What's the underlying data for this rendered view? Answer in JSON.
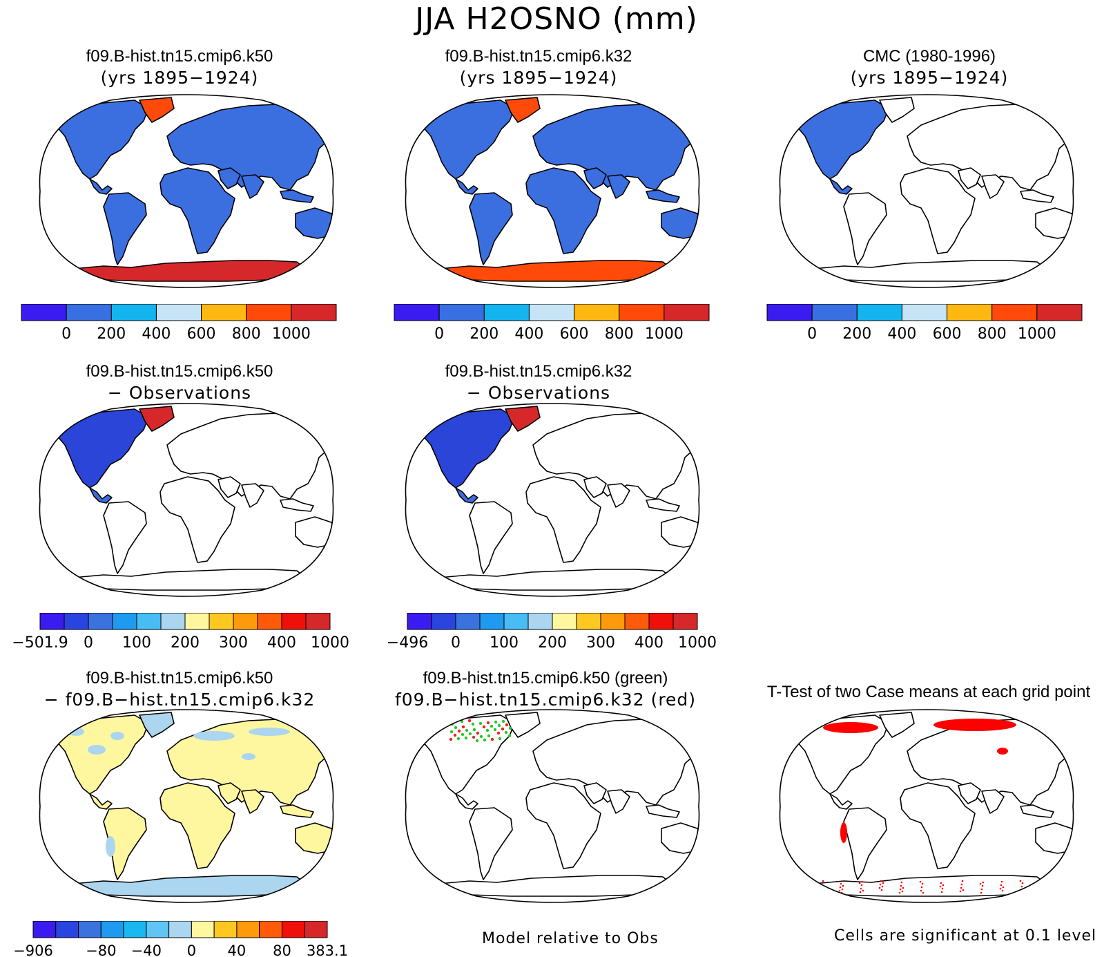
{
  "figure": {
    "title": "JJA H2OSNO (mm)"
  },
  "land_color_map": {
    "model": "#3b6fe0",
    "diff": "#2a45d8",
    "ttest": "#ff0000"
  },
  "panels": [
    {
      "id": "p1",
      "title_line1": "f09.B-hist.tn15.cmip6.k50",
      "title_line2": "(yrs 1895−1924)",
      "fill": "model"
    },
    {
      "id": "p2",
      "title_line1": "f09.B-hist.tn15.cmip6.k32",
      "title_line2": "(yrs 1895−1924)",
      "fill": "model"
    },
    {
      "id": "p3",
      "title_line1": "CMC (1980-1996)",
      "title_line2": "(yrs 1895−1924)",
      "fill": "obs"
    },
    {
      "id": "p4",
      "title_line1": "f09.B-hist.tn15.cmip6.k50",
      "title_line2": "− Observations",
      "fill": "diff"
    },
    {
      "id": "p5",
      "title_line1": "f09.B-hist.tn15.cmip6.k32",
      "title_line2": "− Observations",
      "fill": "diff"
    },
    {
      "id": "p6",
      "title_line1": "f09.B-hist.tn15.cmip6.k50",
      "title_line2": "− f09.B−hist.tn15.cmip6.k32",
      "fill": "casediff"
    },
    {
      "id": "p7",
      "title_line1": "f09.B-hist.tn15.cmip6.k50 (green)",
      "title_line2": "f09.B−hist.tn15.cmip6.k32 (red)",
      "fill": "relative"
    },
    {
      "id": "p8",
      "title_line1": "T-Test of two Case means at each grid point",
      "title_line2": "",
      "fill": "ttest"
    }
  ],
  "colorbars": {
    "model": {
      "colors": [
        "#3a1cf0",
        "#3870e2",
        "#14b4f0",
        "#c6e4f6",
        "#ffb812",
        "#ff4a0a",
        "#d6282a"
      ],
      "labels": [
        "0",
        "200",
        "400",
        "600",
        "800",
        "1000"
      ]
    },
    "diff_k50": {
      "colors": [
        "#3a1cf0",
        "#2a44e0",
        "#3a72e0",
        "#1e9af0",
        "#48bcf4",
        "#acd6f0",
        "#fff6a0",
        "#ffc820",
        "#ff9a0a",
        "#ff5a0a",
        "#f0100a",
        "#d6282a"
      ],
      "labels": [
        "−501.9",
        "0",
        "100",
        "200",
        "300",
        "400",
        "1000"
      ]
    },
    "diff_k32": {
      "colors": [
        "#3a1cf0",
        "#2a44e0",
        "#3a72e0",
        "#1e9af0",
        "#48bcf4",
        "#acd6f0",
        "#fff6a0",
        "#ffc820",
        "#ff9a0a",
        "#ff5a0a",
        "#f0100a",
        "#d6282a"
      ],
      "labels": [
        "−496",
        "0",
        "100",
        "200",
        "300",
        "400",
        "1000"
      ]
    },
    "casediff": {
      "colors": [
        "#3a1cf0",
        "#2a44e0",
        "#3a72e0",
        "#1e9af0",
        "#1ab8f0",
        "#60c4f4",
        "#acd6f0",
        "#fff6a0",
        "#ffc820",
        "#ff9a0a",
        "#ff5a0a",
        "#f0100a",
        "#d6282a"
      ],
      "labels": [
        "−906",
        "−80",
        "−40",
        "0",
        "40",
        "80",
        "383.1"
      ]
    }
  },
  "notes": {
    "relative": "Model relative to Obs",
    "significance": "Cells are significant at 0.1 level"
  }
}
